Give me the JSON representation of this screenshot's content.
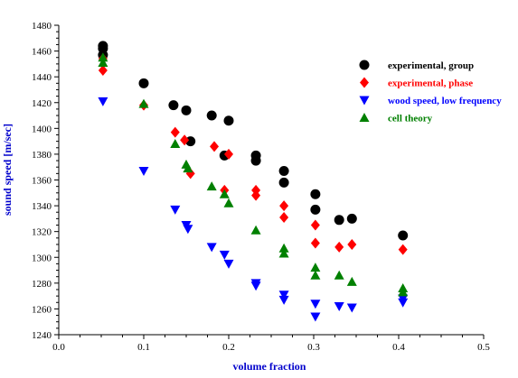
{
  "chart_data": {
    "type": "scatter",
    "xlabel": "volume fraction",
    "ylabel": "sound speed [m/sec]",
    "xlim": [
      0.0,
      0.5
    ],
    "ylim": [
      1240,
      1480
    ],
    "x_ticks": [
      "0.0",
      "0.1",
      "0.2",
      "0.3",
      "0.4",
      "0.5"
    ],
    "y_ticks": [
      "1240",
      "1260",
      "1280",
      "1300",
      "1320",
      "1340",
      "1360",
      "1380",
      "1400",
      "1420",
      "1440",
      "1460",
      "1480"
    ],
    "label_color": "#0000cc",
    "grid": false,
    "legend_position": "top-right",
    "series": [
      {
        "name": "experimental, group",
        "color": "#000000",
        "marker": "circle",
        "points": [
          [
            0.052,
            1464
          ],
          [
            0.052,
            1462
          ],
          [
            0.052,
            1457
          ],
          [
            0.1,
            1435
          ],
          [
            0.135,
            1418
          ],
          [
            0.15,
            1414
          ],
          [
            0.155,
            1390
          ],
          [
            0.18,
            1410
          ],
          [
            0.195,
            1379
          ],
          [
            0.2,
            1406
          ],
          [
            0.232,
            1379
          ],
          [
            0.232,
            1375
          ],
          [
            0.265,
            1367
          ],
          [
            0.265,
            1358
          ],
          [
            0.302,
            1349
          ],
          [
            0.302,
            1337
          ],
          [
            0.33,
            1329
          ],
          [
            0.345,
            1330
          ],
          [
            0.405,
            1317
          ]
        ]
      },
      {
        "name": "experimental, phase",
        "color": "#ff0000",
        "marker": "diamond",
        "points": [
          [
            0.052,
            1454
          ],
          [
            0.052,
            1445
          ],
          [
            0.1,
            1418
          ],
          [
            0.137,
            1397
          ],
          [
            0.148,
            1391
          ],
          [
            0.155,
            1365
          ],
          [
            0.183,
            1386
          ],
          [
            0.2,
            1380
          ],
          [
            0.195,
            1352
          ],
          [
            0.232,
            1352
          ],
          [
            0.232,
            1348
          ],
          [
            0.265,
            1340
          ],
          [
            0.265,
            1331
          ],
          [
            0.302,
            1325
          ],
          [
            0.302,
            1311
          ],
          [
            0.33,
            1308
          ],
          [
            0.345,
            1310
          ],
          [
            0.405,
            1306
          ]
        ]
      },
      {
        "name": "wood speed, low frequency",
        "color": "#0000ff",
        "marker": "triangle-down",
        "points": [
          [
            0.052,
            1421
          ],
          [
            0.1,
            1367
          ],
          [
            0.137,
            1337
          ],
          [
            0.15,
            1325
          ],
          [
            0.152,
            1322
          ],
          [
            0.18,
            1308
          ],
          [
            0.195,
            1302
          ],
          [
            0.2,
            1295
          ],
          [
            0.232,
            1280
          ],
          [
            0.232,
            1278
          ],
          [
            0.265,
            1271
          ],
          [
            0.265,
            1267
          ],
          [
            0.302,
            1264
          ],
          [
            0.302,
            1254
          ],
          [
            0.33,
            1262
          ],
          [
            0.345,
            1261
          ],
          [
            0.405,
            1268
          ],
          [
            0.405,
            1265
          ]
        ]
      },
      {
        "name": "cell theory",
        "color": "#008000",
        "marker": "triangle-up",
        "points": [
          [
            0.052,
            1455
          ],
          [
            0.052,
            1451
          ],
          [
            0.1,
            1419
          ],
          [
            0.137,
            1388
          ],
          [
            0.15,
            1372
          ],
          [
            0.152,
            1369
          ],
          [
            0.18,
            1355
          ],
          [
            0.195,
            1349
          ],
          [
            0.2,
            1342
          ],
          [
            0.232,
            1321
          ],
          [
            0.265,
            1307
          ],
          [
            0.265,
            1303
          ],
          [
            0.302,
            1292
          ],
          [
            0.302,
            1286
          ],
          [
            0.33,
            1286
          ],
          [
            0.345,
            1281
          ],
          [
            0.405,
            1276
          ],
          [
            0.405,
            1273
          ]
        ]
      }
    ]
  }
}
